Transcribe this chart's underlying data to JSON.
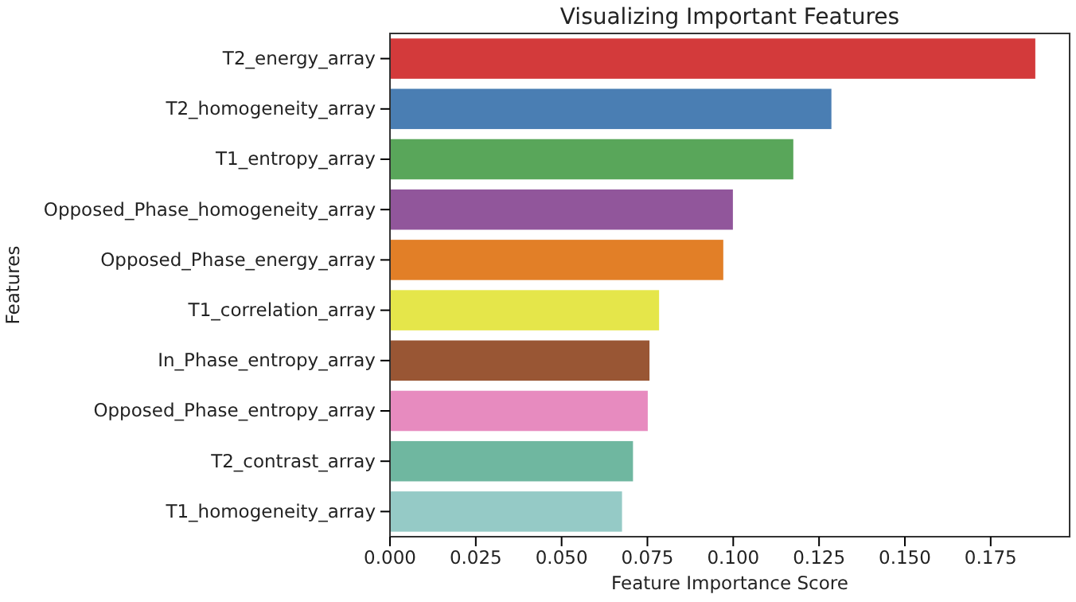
{
  "chart_data": {
    "type": "bar",
    "orientation": "horizontal",
    "title": "Visualizing Important Features",
    "xlabel": "Feature Importance Score",
    "ylabel": "Features",
    "categories": [
      "T2_energy_array",
      "T2_homogeneity_array",
      "T1_entropy_array",
      "Opposed_Phase_homogeneity_array",
      "Opposed_Phase_energy_array",
      "T1_correlation_array",
      "In_Phase_entropy_array",
      "Opposed_Phase_entropy_array",
      "T2_contrast_array",
      "T1_homogeneity_array"
    ],
    "values": [
      0.188,
      0.1286,
      0.1175,
      0.0999,
      0.0971,
      0.0784,
      0.0756,
      0.0751,
      0.0708,
      0.0676
    ],
    "colors": [
      "#d33a3b",
      "#4a7eb3",
      "#59a65a",
      "#91569b",
      "#e27f27",
      "#e5e64a",
      "#995634",
      "#e78bbf",
      "#6fb7a0",
      "#95cac6"
    ],
    "xlim": [
      0,
      0.198
    ],
    "xticks": [
      {
        "value": 0,
        "label": "0.000"
      },
      {
        "value": 0.025,
        "label": "0.025"
      },
      {
        "value": 0.05,
        "label": "0.050"
      },
      {
        "value": 0.075,
        "label": "0.075"
      },
      {
        "value": 0.1,
        "label": "0.100"
      },
      {
        "value": 0.125,
        "label": "0.125"
      },
      {
        "value": 0.15,
        "label": "0.150"
      },
      {
        "value": 0.175,
        "label": "0.175"
      }
    ],
    "grid": false
  }
}
